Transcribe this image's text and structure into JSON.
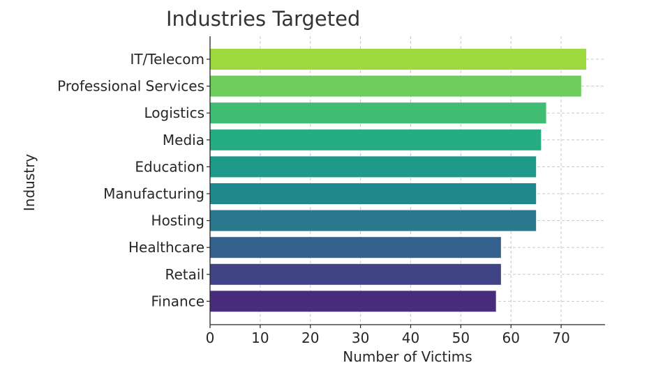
{
  "chart_data": {
    "type": "bar",
    "orientation": "horizontal",
    "title": "Industries Targeted",
    "xlabel": "Number of Victims",
    "ylabel": "Industry",
    "categories": [
      "IT/Telecom",
      "Professional Services",
      "Logistics",
      "Media",
      "Education",
      "Manufacturing",
      "Hosting",
      "Healthcare",
      "Retail",
      "Finance"
    ],
    "values": [
      75,
      74,
      67,
      66,
      65,
      65,
      65,
      58,
      58,
      57
    ],
    "colors": [
      "#9bd93c",
      "#6ccd5a",
      "#40bd72",
      "#25ac82",
      "#1f9a8a",
      "#21898e",
      "#2a788e",
      "#34618d",
      "#414387",
      "#472d7b"
    ],
    "xticks": [
      0,
      10,
      20,
      30,
      40,
      50,
      60,
      70
    ],
    "xlim": [
      0,
      78.75
    ],
    "grid": true,
    "grid_style": "dashed"
  }
}
